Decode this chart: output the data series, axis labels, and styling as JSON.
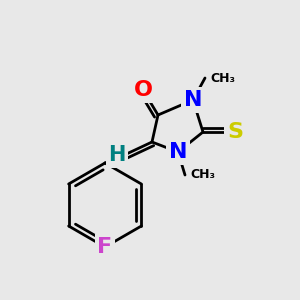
{
  "bg_color": "#e8e8e8",
  "line_color": "#000000",
  "bond_width": 2.0,
  "atom_colors": {
    "O": "#ff0000",
    "N": "#0000ff",
    "S": "#cccc00",
    "F": "#cc44cc",
    "H": "#008080",
    "C": "#000000"
  },
  "font_size": 14
}
